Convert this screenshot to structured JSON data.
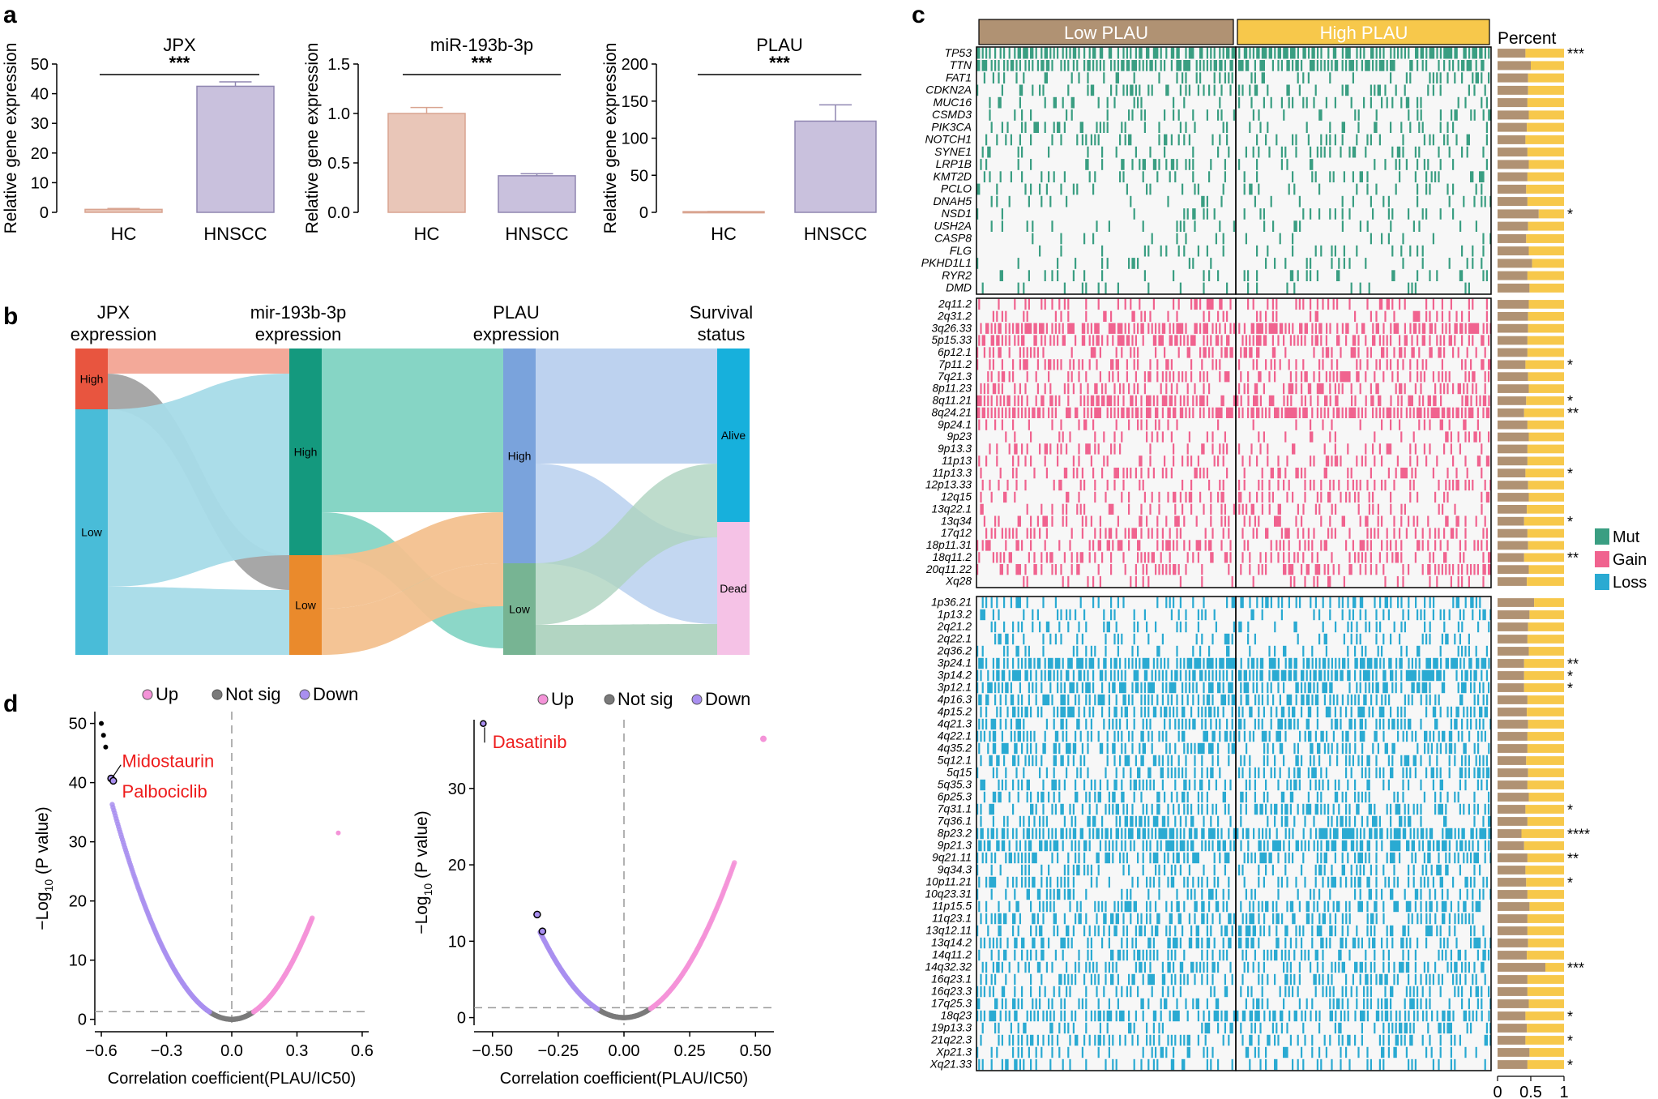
{
  "colors": {
    "hc_bar": "#e9c6b8",
    "hc_edge": "#d9a490",
    "hnscc_bar": "#c9c1dd",
    "hnscc_edge": "#8f86b1",
    "high": "#e8553f",
    "low": "#49bcd8",
    "jpx_high": "#e8553f",
    "jpx_low": "#49bcd8",
    "mir_high": "#14997e",
    "mir_low": "#ea8a2c",
    "plau_high": "#7aa3dc",
    "plau_low": "#77b493",
    "alive": "#17b0dc",
    "dead": "#f5c2e6",
    "mut": "#3a9e82",
    "gain": "#f0638f",
    "loss": "#2aaad2",
    "low_plau": "#b09273",
    "high_plau": "#f7c84b",
    "pct_a": "#b09273",
    "pct_b": "#f7c84b",
    "up": "#f493d8",
    "notsig": "#7a7a7a",
    "down": "#a98ff0",
    "label_red": "#ee1c1c"
  },
  "panels": {
    "a": "a",
    "b": "b",
    "c": "c",
    "d": "d"
  },
  "panel_a": {
    "charts": [
      {
        "title": "JPX",
        "sig": "***",
        "ylabel": "Relative gene expression",
        "categories": [
          "HC",
          "HNSCC"
        ],
        "values": [
          1.0,
          42.5
        ],
        "errors": [
          0.3,
          1.5
        ],
        "ylim": [
          0,
          50
        ],
        "ticks": [
          "0",
          "10",
          "20",
          "30",
          "40",
          "50"
        ],
        "tickvals": [
          0,
          10,
          20,
          30,
          40,
          50
        ]
      },
      {
        "title": "miR-193b-3p",
        "sig": "***",
        "ylabel": "Relative gene expression",
        "categories": [
          "HC",
          "HNSCC"
        ],
        "values": [
          1.0,
          0.37
        ],
        "errors": [
          0.06,
          0.02
        ],
        "ylim": [
          0,
          1.5
        ],
        "ticks": [
          "0.0",
          "0.5",
          "1.0",
          "1.5"
        ],
        "tickvals": [
          0,
          0.5,
          1.0,
          1.5
        ]
      },
      {
        "title": "PLAU",
        "sig": "***",
        "ylabel": "Relative gene expression",
        "categories": [
          "HC",
          "HNSCC"
        ],
        "values": [
          1.0,
          123
        ],
        "errors": [
          0.2,
          22
        ],
        "ylim": [
          0,
          200
        ],
        "ticks": [
          "0",
          "50",
          "100",
          "150",
          "200"
        ],
        "tickvals": [
          0,
          50,
          100,
          150,
          200
        ]
      }
    ]
  },
  "chart_data": [
    {
      "type": "bar",
      "panel": "a",
      "title": "JPX",
      "categories": [
        "HC",
        "HNSCC"
      ],
      "values": [
        1.0,
        42.5
      ],
      "ylabel": "Relative gene expression",
      "ylim": [
        0,
        50
      ]
    },
    {
      "type": "bar",
      "panel": "a",
      "title": "miR-193b-3p",
      "categories": [
        "HC",
        "HNSCC"
      ],
      "values": [
        1.0,
        0.37
      ],
      "ylabel": "Relative gene expression",
      "ylim": [
        0,
        1.5
      ]
    },
    {
      "type": "bar",
      "panel": "a",
      "title": "PLAU",
      "categories": [
        "HC",
        "HNSCC"
      ],
      "values": [
        1.0,
        123
      ],
      "ylabel": "Relative gene expression",
      "ylim": [
        0,
        200
      ]
    },
    {
      "type": "sankey",
      "panel": "b",
      "axes": [
        "JPX expression",
        "mir-193b-3p expression",
        "PLAU expression",
        "Survival status"
      ],
      "stages": [
        [
          {
            "label": "High",
            "share": 0.19
          },
          {
            "label": "Low",
            "share": 0.81
          }
        ],
        [
          {
            "label": "High",
            "share": 0.63
          },
          {
            "label": "Low",
            "share": 0.37
          }
        ],
        [
          {
            "label": "High",
            "share": 0.66
          },
          {
            "label": "Low",
            "share": 0.34
          }
        ],
        [
          {
            "label": "Alive",
            "share": 0.55
          },
          {
            "label": "Dead",
            "share": 0.45
          }
        ]
      ]
    },
    {
      "type": "heatmap",
      "panel": "c",
      "columns": [
        "Low PLAU",
        "High PLAU"
      ],
      "legend": [
        "Mut",
        "Gain",
        "Loss"
      ],
      "percent_axis": [
        "0",
        "0.5",
        "1"
      ]
    },
    {
      "type": "scatter",
      "panel": "d",
      "subtype": "volcano",
      "xlabel": "Correlation coefficient(PLAU/IC50)",
      "ylabel": "−Log10 (P value)",
      "xlim": [
        -0.63,
        0.63
      ],
      "ylim": [
        -1,
        52
      ],
      "labels": [
        "Midostaurin",
        "Palbociclib"
      ]
    },
    {
      "type": "scatter",
      "panel": "d",
      "subtype": "volcano",
      "xlabel": "Correlation coefficient(PLAU/IC50)",
      "ylabel": "−Log10 (P value)",
      "xlim": [
        -0.57,
        0.57
      ],
      "ylim": [
        -1,
        39
      ],
      "labels": [
        "Dasatinib"
      ]
    }
  ],
  "panel_b": {
    "axes": [
      {
        "line1": "JPX",
        "line2": "expression"
      },
      {
        "line1": "mir-193b-3p",
        "line2": "expression"
      },
      {
        "line1": "PLAU",
        "line2": "expression"
      },
      {
        "line1": "Survival",
        "line2": "status"
      }
    ],
    "nodes": {
      "jpx_high": "High",
      "jpx_low": "Low",
      "mir_high": "High",
      "mir_low": "Low",
      "plau_high": "High",
      "plau_low": "Low",
      "alive": "Alive",
      "dead": "Dead"
    }
  },
  "panel_c": {
    "columns": [
      "Low PLAU",
      "High PLAU"
    ],
    "percent_label": "Percent",
    "percent_ticks": [
      "0",
      "0.5",
      "1"
    ],
    "legend": [
      {
        "label": "Mut",
        "key": "mut"
      },
      {
        "label": "Gain",
        "key": "gain"
      },
      {
        "label": "Loss",
        "key": "loss"
      }
    ],
    "mut": {
      "genes": [
        "TP53",
        "TTN",
        "FAT1",
        "CDKN2A",
        "MUC16",
        "CSMD3",
        "PIK3CA",
        "NOTCH1",
        "SYNE1",
        "LRP1B",
        "KMT2D",
        "PCLO",
        "DNAH5",
        "NSD1",
        "USH2A",
        "CASP8",
        "FLG",
        "PKHD1L1",
        "RYR2",
        "DMD"
      ],
      "freq": [
        0.68,
        0.65,
        0.22,
        0.21,
        0.17,
        0.16,
        0.17,
        0.17,
        0.15,
        0.14,
        0.13,
        0.13,
        0.13,
        0.11,
        0.12,
        0.11,
        0.1,
        0.1,
        0.1,
        0.09
      ],
      "pct": [
        0.42,
        0.5,
        0.46,
        0.46,
        0.45,
        0.47,
        0.44,
        0.42,
        0.45,
        0.47,
        0.45,
        0.43,
        0.45,
        0.62,
        0.46,
        0.43,
        0.47,
        0.52,
        0.45,
        0.48
      ],
      "stars": [
        "***",
        "",
        "",
        "",
        "",
        "",
        "",
        "",
        "",
        "",
        "",
        "",
        "",
        "*",
        "",
        "",
        "",
        "",
        "",
        ""
      ]
    },
    "gain": {
      "genes": [
        "2q11.2",
        "2q31.2",
        "3q26.33",
        "5p15.33",
        "6p12.1",
        "7p11.2",
        "7q21.3",
        "8p11.23",
        "8q11.21",
        "8q24.21",
        "9p24.1",
        "9p23",
        "9p13.3",
        "11p13",
        "11p13.3",
        "12p13.33",
        "12q15",
        "13q22.1",
        "13q34",
        "17q12",
        "18p11.31",
        "18q11.2",
        "20q11.22",
        "Xq28"
      ],
      "freq": [
        0.22,
        0.22,
        0.62,
        0.48,
        0.28,
        0.3,
        0.35,
        0.38,
        0.5,
        0.72,
        0.17,
        0.16,
        0.17,
        0.22,
        0.22,
        0.27,
        0.19,
        0.22,
        0.27,
        0.27,
        0.27,
        0.27,
        0.32,
        0.12
      ],
      "pct": [
        0.47,
        0.46,
        0.46,
        0.45,
        0.45,
        0.42,
        0.46,
        0.47,
        0.43,
        0.4,
        0.45,
        0.47,
        0.45,
        0.45,
        0.42,
        0.46,
        0.47,
        0.44,
        0.4,
        0.45,
        0.46,
        0.4,
        0.47,
        0.44
      ],
      "stars": [
        "",
        "",
        "",
        "",
        "",
        "*",
        "",
        "",
        "*",
        "**",
        "",
        "",
        "",
        "",
        "*",
        "",
        "",
        "",
        "*",
        "",
        "",
        "**",
        "",
        ""
      ]
    },
    "loss": {
      "genes": [
        "1p36.21",
        "1p13.2",
        "2q21.2",
        "2q22.1",
        "2q36.2",
        "3p24.1",
        "3p14.2",
        "3p12.1",
        "4p16.3",
        "4p15.2",
        "4q21.3",
        "4q22.1",
        "4q35.2",
        "5q12.1",
        "5q15",
        "5q35.3",
        "6p25.3",
        "7q31.1",
        "7q36.1",
        "8p23.2",
        "9p21.3",
        "9q21.11",
        "9q34.3",
        "10p11.21",
        "10q23.31",
        "11p15.5",
        "11q23.1",
        "13q12.11",
        "13q14.2",
        "14q11.2",
        "14q32.32",
        "16q23.1",
        "16q23.3",
        "17q25.3",
        "18q23",
        "19p13.3",
        "21q22.3",
        "Xp21.3",
        "Xq21.33"
      ],
      "freq": [
        0.25,
        0.18,
        0.22,
        0.2,
        0.22,
        0.75,
        0.65,
        0.52,
        0.42,
        0.42,
        0.38,
        0.4,
        0.42,
        0.35,
        0.33,
        0.33,
        0.32,
        0.36,
        0.3,
        0.7,
        0.58,
        0.42,
        0.26,
        0.3,
        0.32,
        0.46,
        0.4,
        0.36,
        0.38,
        0.28,
        0.36,
        0.34,
        0.3,
        0.28,
        0.55,
        0.28,
        0.34,
        0.2,
        0.25
      ],
      "pct": [
        0.55,
        0.48,
        0.46,
        0.45,
        0.47,
        0.4,
        0.4,
        0.4,
        0.45,
        0.44,
        0.46,
        0.45,
        0.45,
        0.43,
        0.46,
        0.45,
        0.47,
        0.42,
        0.45,
        0.36,
        0.4,
        0.45,
        0.42,
        0.43,
        0.45,
        0.48,
        0.45,
        0.45,
        0.46,
        0.44,
        0.72,
        0.45,
        0.45,
        0.47,
        0.42,
        0.44,
        0.42,
        0.48,
        0.45
      ],
      "stars": [
        "",
        "",
        "",
        "",
        "",
        "**",
        "*",
        "*",
        "",
        "",
        "",
        "",
        "",
        "",
        "",
        "",
        "",
        "*",
        "",
        "****",
        "",
        "**",
        "",
        "*",
        "",
        "",
        "",
        "",
        "",
        "",
        "***",
        "",
        "",
        "",
        "*",
        "",
        "*",
        "",
        "*"
      ]
    }
  },
  "panel_d": {
    "legend": [
      {
        "label": "Up",
        "key": "up"
      },
      {
        "label": "Not sig",
        "key": "notsig"
      },
      {
        "label": "Down",
        "key": "down"
      }
    ],
    "plots": [
      {
        "xlabel": "Correlation coefficient(PLAU/IC50)",
        "ylabel_main": "−Log",
        "ylabel_sub": "10",
        "ylabel_rest": " (P value)",
        "xticks": [
          "−0.6",
          "−0.3",
          "0.0",
          "0.3",
          "0.6"
        ],
        "xtickvals": [
          -0.6,
          -0.3,
          0,
          0.3,
          0.6
        ],
        "yticks": [
          "0",
          "10",
          "20",
          "30",
          "40",
          "50"
        ],
        "ytickvals": [
          0,
          10,
          20,
          30,
          40,
          50
        ],
        "label1": "Midostaurin",
        "label2": "Palbociclib"
      },
      {
        "xlabel": "Correlation coefficient(PLAU/IC50)",
        "ylabel_main": "−Log",
        "ylabel_sub": "10",
        "ylabel_rest": " (P value)",
        "xticks": [
          "−0.50",
          "−0.25",
          "0.00",
          "0.25",
          "0.50"
        ],
        "xtickvals": [
          -0.5,
          -0.25,
          0,
          0.25,
          0.5
        ],
        "yticks": [
          "0",
          "10",
          "20",
          "30"
        ],
        "ytickvals": [
          0,
          10,
          20,
          30
        ],
        "label1": "Dasatinib"
      }
    ]
  }
}
